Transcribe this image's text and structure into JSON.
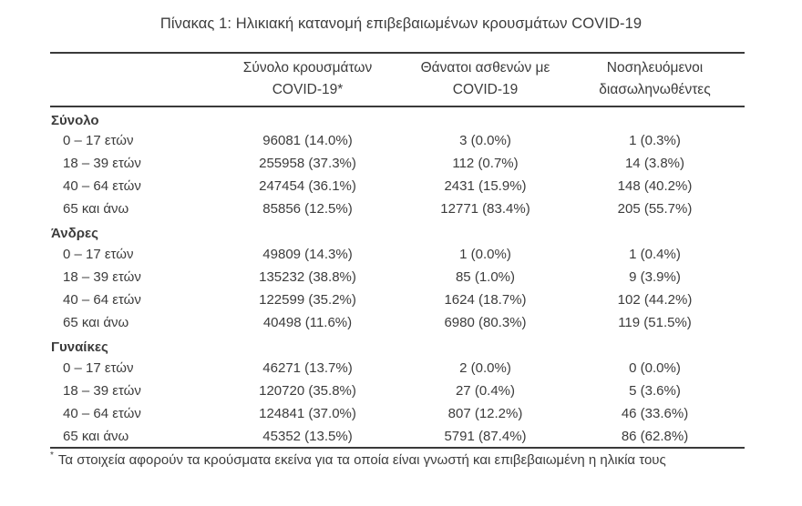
{
  "title": "Πίνακας 1: Ηλικιακή κατανομή επιβεβαιωμένων κρουσμάτων COVID-19",
  "table": {
    "columns": [
      {
        "line1": "",
        "line2": ""
      },
      {
        "line1": "Σύνολο κρουσμάτων",
        "line2": "COVID-19*"
      },
      {
        "line1": "Θάνατοι ασθενών με",
        "line2": "COVID-19"
      },
      {
        "line1": "Νοσηλευόμενοι",
        "line2": "διασωληνωθέντες"
      }
    ],
    "sections": [
      {
        "name": "Σύνολο",
        "rows": [
          {
            "label": "0 – 17 ετών",
            "cases": "96081 (14.0%)",
            "deaths": "3 (0.0%)",
            "intubated": "1 (0.3%)"
          },
          {
            "label": "18 – 39 ετών",
            "cases": "255958 (37.3%)",
            "deaths": "112 (0.7%)",
            "intubated": "14 (3.8%)"
          },
          {
            "label": "40 – 64 ετών",
            "cases": "247454 (36.1%)",
            "deaths": "2431 (15.9%)",
            "intubated": "148 (40.2%)"
          },
          {
            "label": "65 και άνω",
            "cases": "85856 (12.5%)",
            "deaths": "12771 (83.4%)",
            "intubated": "205 (55.7%)"
          }
        ]
      },
      {
        "name": "Άνδρες",
        "rows": [
          {
            "label": "0 – 17 ετών",
            "cases": "49809 (14.3%)",
            "deaths": "1 (0.0%)",
            "intubated": "1 (0.4%)"
          },
          {
            "label": "18 – 39 ετών",
            "cases": "135232 (38.8%)",
            "deaths": "85 (1.0%)",
            "intubated": "9 (3.9%)"
          },
          {
            "label": "40 – 64 ετών",
            "cases": "122599 (35.2%)",
            "deaths": "1624 (18.7%)",
            "intubated": "102 (44.2%)"
          },
          {
            "label": "65 και άνω",
            "cases": "40498 (11.6%)",
            "deaths": "6980 (80.3%)",
            "intubated": "119 (51.5%)"
          }
        ]
      },
      {
        "name": "Γυναίκες",
        "rows": [
          {
            "label": "0 – 17 ετών",
            "cases": "46271 (13.7%)",
            "deaths": "2 (0.0%)",
            "intubated": "0 (0.0%)"
          },
          {
            "label": "18 – 39 ετών",
            "cases": "120720 (35.8%)",
            "deaths": "27 (0.4%)",
            "intubated": "5 (3.6%)"
          },
          {
            "label": "40 – 64 ετών",
            "cases": "124841 (37.0%)",
            "deaths": "807 (12.2%)",
            "intubated": "46 (33.6%)"
          },
          {
            "label": "65 και άνω",
            "cases": "45352 (13.5%)",
            "deaths": "5791 (87.4%)",
            "intubated": "86 (62.8%)"
          }
        ]
      }
    ]
  },
  "footnote": {
    "marker": "*",
    "text": "Τα στοιχεία αφορούν τα κρούσματα εκείνα για τα οποία είναι γνωστή και επιβεβαιωμένη η ηλικία τους"
  },
  "colors": {
    "text": "#3c3c3c",
    "rule": "#3a3a3a",
    "background": "#ffffff"
  }
}
